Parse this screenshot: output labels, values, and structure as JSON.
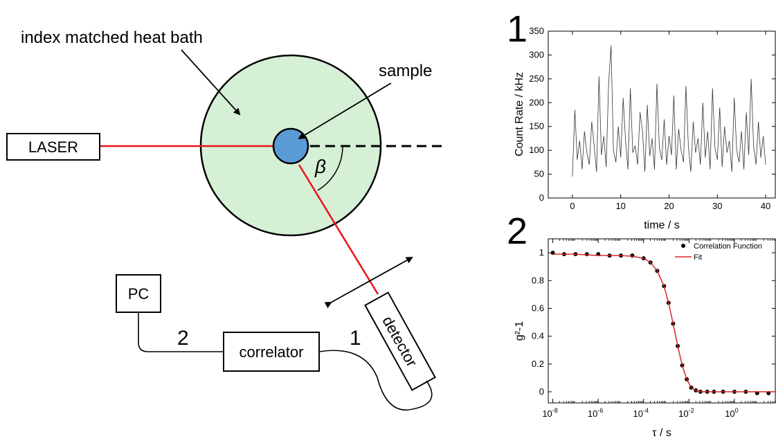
{
  "diagram": {
    "heat_bath_label": "index matched heat bath",
    "sample_label": "sample",
    "laser_label": "LASER",
    "angle_label": "β",
    "detector_label": "detector",
    "correlator_label": "correlator",
    "pc_label": "PC",
    "connection_1": "1",
    "connection_2": "2",
    "colors": {
      "bath": "#d5f0d5",
      "sample": "#5b9bd5",
      "beam": "#e8141b"
    }
  },
  "chart_data": [
    {
      "type": "line",
      "panel_label": "1",
      "xlabel": "time / s",
      "ylabel": "Count Rate / kHz",
      "xlim": [
        -5,
        42
      ],
      "ylim": [
        0,
        350
      ],
      "x_ticks": [
        0,
        10,
        20,
        30,
        40
      ],
      "y_ticks": [
        0,
        50,
        100,
        150,
        200,
        250,
        300,
        350
      ],
      "series": [
        {
          "color": "#333333",
          "x": [
            0,
            0.5,
            1.0,
            1.5,
            2.0,
            2.5,
            3.0,
            3.5,
            4.0,
            4.5,
            5.0,
            5.5,
            6.0,
            6.5,
            7.0,
            7.5,
            8.0,
            8.5,
            9.0,
            9.5,
            10.0,
            10.5,
            11.0,
            11.5,
            12.0,
            12.5,
            13.0,
            13.5,
            14.0,
            14.5,
            15.0,
            15.5,
            16.0,
            16.5,
            17.0,
            17.5,
            18.0,
            18.5,
            19.0,
            19.5,
            20.0,
            20.5,
            21.0,
            21.5,
            22.0,
            22.5,
            23.0,
            23.5,
            24.0,
            24.5,
            25.0,
            25.5,
            26.0,
            26.5,
            27.0,
            27.5,
            28.0,
            28.5,
            29.0,
            29.5,
            30.0,
            30.5,
            31.0,
            31.5,
            32.0,
            32.5,
            33.0,
            33.5,
            34.0,
            34.5,
            35.0,
            35.5,
            36.0,
            36.5,
            37.0,
            37.5,
            38.0,
            38.5,
            39.0,
            39.5,
            40.0
          ],
          "y": [
            45,
            185,
            80,
            120,
            60,
            140,
            95,
            70,
            160,
            110,
            55,
            255,
            90,
            130,
            65,
            240,
            320,
            100,
            75,
            150,
            85,
            210,
            120,
            60,
            230,
            95,
            110,
            70,
            180,
            140,
            55,
            195,
            88,
            125,
            60,
            240,
            105,
            80,
            165,
            70,
            130,
            90,
            215,
            60,
            145,
            100,
            75,
            235,
            110,
            55,
            160,
            95,
            125,
            70,
            200,
            85,
            140,
            60,
            230,
            105,
            80,
            190,
            65,
            150,
            95,
            120,
            55,
            210,
            100,
            75,
            140,
            60,
            180,
            90,
            250,
            110,
            70,
            160,
            85,
            130,
            70
          ]
        }
      ]
    },
    {
      "type": "scatter",
      "panel_label": "2",
      "xlabel": "τ / s",
      "ylabel": "g²-1",
      "x_scale": "log",
      "xlim_exp": [
        -8.2,
        1.8
      ],
      "ylim": [
        -0.08,
        1.1
      ],
      "x_tick_exponents": [
        -8,
        -6,
        -4,
        -2,
        0
      ],
      "y_ticks": [
        0,
        0.2,
        0.4,
        0.6,
        0.8,
        1
      ],
      "legend_position": "top-right",
      "series": [
        {
          "name": "Correlation Function",
          "color": "#000000"
        },
        {
          "name": "Fit",
          "color": "#d62728"
        }
      ],
      "points_log10_tau": [
        -8.0,
        -7.5,
        -7.0,
        -6.5,
        -6.0,
        -5.5,
        -5.0,
        -4.5,
        -4.0,
        -3.7,
        -3.4,
        -3.1,
        -2.9,
        -2.7,
        -2.5,
        -2.3,
        -2.1,
        -1.9,
        -1.7,
        -1.5,
        -1.2,
        -0.9,
        -0.5,
        0.0,
        0.5,
        1.0,
        1.5
      ],
      "points_g2": [
        1.0,
        0.99,
        0.99,
        0.99,
        0.99,
        0.98,
        0.98,
        0.98,
        0.96,
        0.93,
        0.87,
        0.76,
        0.64,
        0.49,
        0.33,
        0.19,
        0.09,
        0.03,
        0.01,
        0.0,
        0.0,
        0.0,
        0.0,
        0.0,
        0.0,
        -0.01,
        -0.01
      ],
      "fit_log10_tau": [
        -8.0,
        -7.0,
        -6.0,
        -5.0,
        -4.5,
        -4.0,
        -3.7,
        -3.4,
        -3.1,
        -2.9,
        -2.7,
        -2.5,
        -2.3,
        -2.1,
        -1.9,
        -1.7,
        -1.5,
        -1.0,
        0.0,
        1.0,
        1.8
      ],
      "fit_g2": [
        0.99,
        0.99,
        0.98,
        0.98,
        0.975,
        0.96,
        0.93,
        0.87,
        0.76,
        0.64,
        0.49,
        0.33,
        0.19,
        0.09,
        0.03,
        0.01,
        0.0,
        0.0,
        0.0,
        0.0,
        0.0
      ]
    }
  ]
}
